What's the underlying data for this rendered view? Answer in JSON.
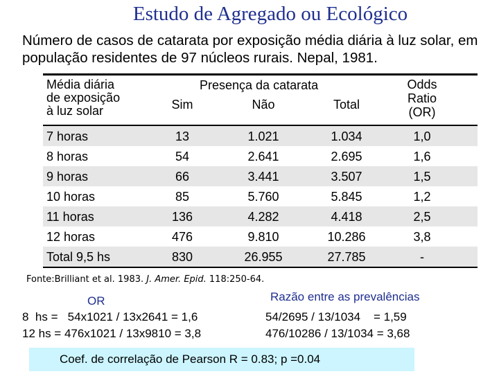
{
  "title": "Estudo de Agregado ou Ecológico",
  "subtitle": "Número de casos de catarata por exposição média diária à luz solar, em população residentes de 97 núcleos rurais. Nepal, 1981.",
  "table": {
    "header": {
      "exposure": [
        "Média diária",
        "de exposição",
        "à luz solar"
      ],
      "group": "Presença da catarata",
      "sim": "Sim",
      "nao": "Não",
      "total": "Total",
      "or": [
        "Odds",
        "Ratio",
        "(OR)"
      ]
    },
    "rows": [
      {
        "label": "7 horas",
        "sim": "13",
        "nao": "1.021",
        "total": "1.034",
        "or": "1,0"
      },
      {
        "label": "8 horas",
        "sim": "54",
        "nao": "2.641",
        "total": "2.695",
        "or": "1,6"
      },
      {
        "label": "9 horas",
        "sim": "66",
        "nao": "3.441",
        "total": "3.507",
        "or": "1,5"
      },
      {
        "label": "10 horas",
        "sim": "85",
        "nao": "5.760",
        "total": "5.845",
        "or": "1,2"
      },
      {
        "label": "11 horas",
        "sim": "136",
        "nao": "4.282",
        "total": "4.418",
        "or": "2,5"
      },
      {
        "label": "12 horas",
        "sim": "476",
        "nao": "9.810",
        "total": "10.286",
        "or": "3,8"
      },
      {
        "label": "Total 9,5 hs",
        "sim": "830",
        "nao": "26.955",
        "total": "27.785",
        "or": "-"
      }
    ]
  },
  "source": {
    "prefix": "Fonte:Brilliant et al. 1983. ",
    "journal": "J. Amer. Epid.",
    "suffix": " 118:250-64."
  },
  "or_calc": {
    "heading": "OR",
    "line1": "8  hs =   54x1021 / 13x2641 = 1,6",
    "line2": "12 hs = 476x1021 / 13x9810 = 3,8"
  },
  "prevalence": {
    "heading": "Razão entre as prevalências",
    "line1": "54/2695 / 13/1034    = 1,59",
    "line2": "476/10286 / 13/1034 = 3,68"
  },
  "pearson": "Coef. de correlação de Pearson R = 0.83; p =0.04"
}
